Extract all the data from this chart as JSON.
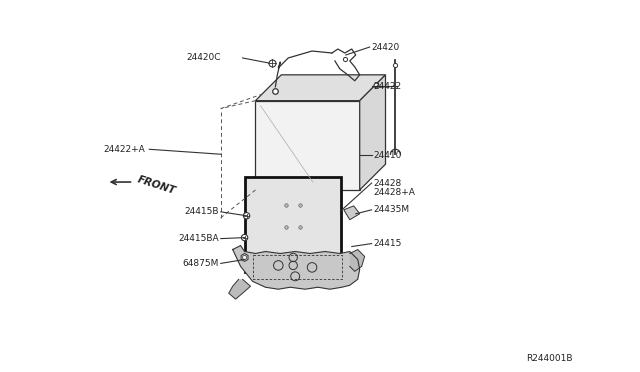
{
  "bg_color": "#ffffff",
  "line_color": "#333333",
  "text_color": "#222222",
  "fig_width": 6.4,
  "fig_height": 3.72,
  "dpi": 100,
  "ref_number": "R244001B",
  "label_24420": "24420",
  "label_24420C": "24420C",
  "label_24422": "24422",
  "label_24410": "24410",
  "label_24422A": "24422+A",
  "label_front": "FRONT",
  "label_24428": "24428",
  "label_24428A": "24428+A",
  "label_24435M": "24435M",
  "label_24415B": "24415B",
  "label_24415BA": "24415BA",
  "label_64875M": "64875M",
  "label_24415": "24415"
}
